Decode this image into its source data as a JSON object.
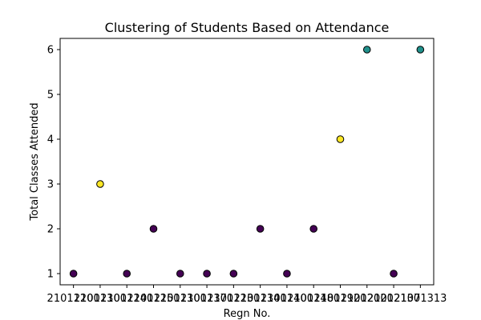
{
  "chart_data": {
    "type": "scatter",
    "title": "Clustering of Students Based on Attendance",
    "xlabel": "Regn No.",
    "ylabel": "Total Classes Attended",
    "x": [
      "21011200",
      "21011300",
      "21011240",
      "21011250",
      "21011300",
      "21011370",
      "21011230",
      "21011340",
      "21011400",
      "21011480",
      "21011920",
      "21012020",
      "21012130",
      "21071313"
    ],
    "y": [
      1,
      3,
      1,
      2,
      1,
      1,
      1,
      2,
      1,
      2,
      4,
      6,
      1,
      6
    ],
    "cluster": [
      0,
      2,
      0,
      0,
      0,
      0,
      0,
      0,
      0,
      0,
      2,
      1,
      0,
      1
    ],
    "cluster_colors": [
      "#440154",
      "#21918c",
      "#fde725"
    ],
    "ylim": [
      0.75,
      6.25
    ],
    "yticks": [
      1,
      2,
      3,
      4,
      5,
      6
    ],
    "grid": false
  }
}
